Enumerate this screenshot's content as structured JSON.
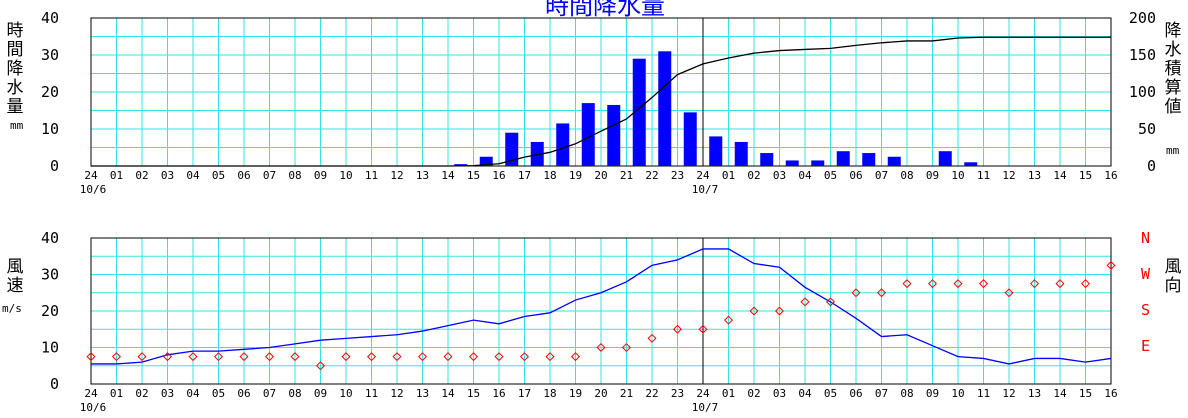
{
  "title": "時間降水量",
  "labels": {
    "precip_left": [
      "時",
      "間",
      "降",
      "水",
      "量"
    ],
    "precip_left_unit": "mm",
    "precip_right": [
      "降",
      "水",
      "積",
      "算",
      "値"
    ],
    "precip_right_unit": "mm",
    "wind_left": [
      "風",
      "速"
    ],
    "wind_left_unit": "m/s",
    "wind_right": [
      "風",
      "向"
    ],
    "wind_dirs": [
      "N",
      "W",
      "S",
      "E"
    ]
  },
  "colors": {
    "grid": "#33e6e6",
    "bar": "#0000ff",
    "line": "#0000ff",
    "cumulative": "#000000",
    "direction": "#ff0000",
    "text": "#000000"
  },
  "chart_data": [
    {
      "type": "bar",
      "title": "",
      "xlabel": "",
      "ylabel": "時間降水量 mm",
      "y2label": "降水積算値 mm",
      "ylim": [
        0,
        40
      ],
      "y2lim": [
        0,
        200
      ],
      "yticks": [
        0,
        10,
        20,
        30,
        40
      ],
      "y2ticks": [
        0,
        50,
        100,
        150,
        200
      ],
      "grid": true,
      "x_ticks": [
        "24",
        "01",
        "02",
        "03",
        "04",
        "05",
        "06",
        "07",
        "08",
        "09",
        "10",
        "11",
        "12",
        "13",
        "14",
        "15",
        "16",
        "17",
        "18",
        "19",
        "20",
        "21",
        "22",
        "23",
        "24",
        "01",
        "02",
        "03",
        "04",
        "05",
        "06",
        "07",
        "08",
        "09",
        "10",
        "11",
        "12",
        "13",
        "14",
        "15",
        "16"
      ],
      "date_labels": [
        {
          "index": 0,
          "text": "10/6"
        },
        {
          "index": 24,
          "text": "10/7"
        }
      ],
      "day_divider_index": 24,
      "series": [
        {
          "kind": "bar",
          "values": [
            0,
            0,
            0,
            0,
            0,
            0,
            0,
            0,
            0,
            0,
            0,
            0,
            0,
            0,
            0.5,
            2.5,
            9,
            6.5,
            11.5,
            17,
            16.5,
            29,
            31,
            14.5,
            8,
            6.5,
            3.5,
            1.5,
            1.5,
            4,
            3.5,
            2.5,
            0,
            4,
            1,
            0,
            0,
            0,
            0,
            0
          ]
        },
        {
          "kind": "line",
          "axis": "right",
          "values": [
            0,
            0,
            0,
            0,
            0,
            0,
            0,
            0,
            0,
            0,
            0,
            0,
            0,
            0,
            0,
            0.5,
            3,
            12,
            18.5,
            30,
            47,
            63.5,
            92.5,
            123.5,
            138,
            146,
            152.5,
            156,
            157.5,
            159,
            163,
            166.5,
            169,
            169,
            173,
            174,
            174,
            174,
            174,
            174,
            174
          ]
        }
      ]
    },
    {
      "type": "line",
      "title": "",
      "xlabel": "",
      "ylabel": "風速 m/s",
      "y2label": "風向",
      "ylim": [
        0,
        40
      ],
      "yticks": [
        0,
        10,
        20,
        30,
        40
      ],
      "y2ticks": [
        "N",
        "W",
        "S",
        "E"
      ],
      "grid": true,
      "x_ticks": [
        "24",
        "01",
        "02",
        "03",
        "04",
        "05",
        "06",
        "07",
        "08",
        "09",
        "10",
        "11",
        "12",
        "13",
        "14",
        "15",
        "16",
        "17",
        "18",
        "19",
        "20",
        "21",
        "22",
        "23",
        "24",
        "01",
        "02",
        "03",
        "04",
        "05",
        "06",
        "07",
        "08",
        "09",
        "10",
        "11",
        "12",
        "13",
        "14",
        "15",
        "16"
      ],
      "date_labels": [
        {
          "index": 0,
          "text": "10/6"
        },
        {
          "index": 24,
          "text": "10/7"
        }
      ],
      "day_divider_index": 24,
      "series": [
        {
          "kind": "line",
          "values": [
            5.5,
            5.5,
            6,
            8,
            9,
            9,
            9.5,
            10,
            11,
            12,
            12.5,
            13,
            13.5,
            14.5,
            16,
            17.5,
            16.5,
            18.5,
            19.5,
            23,
            25,
            28,
            32.5,
            34,
            37,
            37,
            33,
            32,
            26.5,
            22.5,
            18,
            13,
            13.5,
            10.5,
            7.5,
            7,
            5.5,
            7,
            7,
            6,
            7
          ]
        },
        {
          "kind": "direction",
          "values": [
            7.5,
            7.5,
            7.5,
            7.5,
            7.5,
            7.5,
            7.5,
            7.5,
            7.5,
            5,
            7.5,
            7.5,
            7.5,
            7.5,
            7.5,
            7.5,
            7.5,
            7.5,
            7.5,
            7.5,
            10,
            10,
            12.5,
            15,
            15,
            17.5,
            20,
            20,
            22.5,
            22.5,
            25,
            25,
            27.5,
            27.5,
            27.5,
            27.5,
            25,
            27.5,
            27.5,
            27.5,
            32.5
          ]
        }
      ]
    }
  ]
}
